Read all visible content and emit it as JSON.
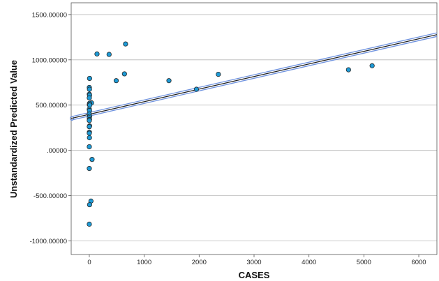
{
  "chart_data": {
    "type": "scatter",
    "title": "",
    "xlabel": "CASES",
    "ylabel": "Unstandardized Predicted Value",
    "xlim": [
      -330,
      6330
    ],
    "ylim": [
      -1150,
      1630
    ],
    "x_ticks": [
      0,
      1000,
      2000,
      3000,
      4000,
      5000,
      6000
    ],
    "x_tick_labels": [
      "0",
      "1000",
      "2000",
      "3000",
      "4000",
      "5000",
      "6000"
    ],
    "y_ticks": [
      1500,
      1000,
      500,
      0,
      -500,
      -1000
    ],
    "y_tick_labels": [
      "1500.00000",
      "1000.00000",
      "500.00000",
      ".00000",
      "-500.00000",
      "-1000.00000"
    ],
    "grid": "horizontal",
    "legend": "none",
    "marker_color": "#1e9bd7",
    "fit_line_color": "#1a1a1a",
    "ci_color": "#6f93e0",
    "fit_line": {
      "x": [
        -330,
        6330
      ],
      "y": [
        353,
        1278
      ]
    },
    "confidence_band": {
      "upper": {
        "x": [
          -330,
          6330
        ],
        "y": [
          372,
          1298
        ]
      },
      "lower": {
        "x": [
          -330,
          6330
        ],
        "y": [
          334,
          1258
        ]
      }
    },
    "series": [
      {
        "points": [
          [
            140,
            1065
          ],
          [
            360,
            1060
          ],
          [
            660,
            1175
          ],
          [
            640,
            845
          ],
          [
            490,
            770
          ],
          [
            1450,
            770
          ],
          [
            1950,
            675
          ],
          [
            2350,
            840
          ],
          [
            4720,
            890
          ],
          [
            5150,
            935
          ],
          [
            5,
            795
          ],
          [
            0,
            695
          ],
          [
            3,
            675
          ],
          [
            0,
            620
          ],
          [
            5,
            610
          ],
          [
            0,
            580
          ],
          [
            40,
            525
          ],
          [
            5,
            520
          ],
          [
            0,
            505
          ],
          [
            8,
            500
          ],
          [
            0,
            455
          ],
          [
            3,
            440
          ],
          [
            0,
            400
          ],
          [
            5,
            375
          ],
          [
            0,
            360
          ],
          [
            3,
            340
          ],
          [
            0,
            330
          ],
          [
            5,
            270
          ],
          [
            0,
            262
          ],
          [
            2,
            200
          ],
          [
            0,
            190
          ],
          [
            3,
            140
          ],
          [
            0,
            40
          ],
          [
            50,
            -100
          ],
          [
            0,
            -200
          ],
          [
            30,
            -560
          ],
          [
            5,
            -600
          ],
          [
            0,
            -815
          ]
        ]
      }
    ]
  }
}
